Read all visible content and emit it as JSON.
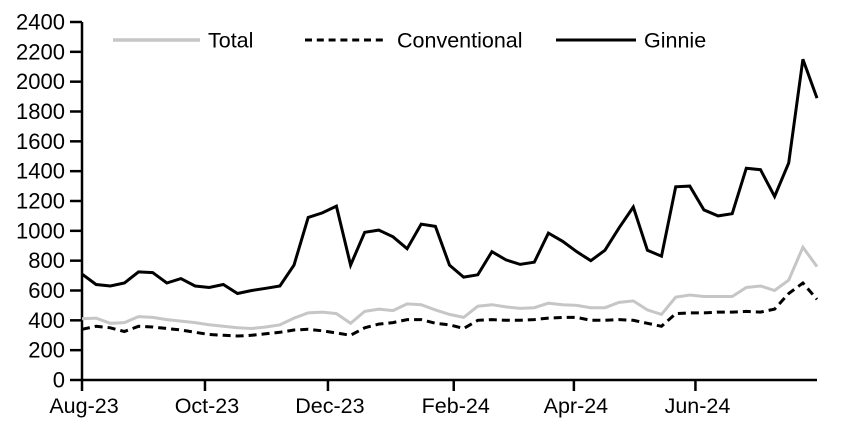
{
  "chart_data": {
    "type": "line",
    "title": "",
    "xlabel": "",
    "ylabel": "",
    "grid": false,
    "legend_position": "top-inside",
    "x_axis": {
      "n_points": 53,
      "unit": "weekly",
      "tick_labels": [
        "Aug-23",
        "Oct-23",
        "Dec-23",
        "Feb-24",
        "Apr-24",
        "Jun-24"
      ],
      "tick_point_index": [
        0,
        8.7,
        17.4,
        26.3,
        34.8,
        43.4
      ]
    },
    "y_axis": {
      "ylim": [
        0,
        2400
      ],
      "tick_step": 200,
      "tick_labels": [
        "0",
        "200",
        "400",
        "600",
        "800",
        "1000",
        "1200",
        "1400",
        "1600",
        "1800",
        "2000",
        "2200",
        "2400"
      ]
    },
    "series": [
      {
        "name": "Total",
        "color": "#c6c6c6",
        "style": "solid",
        "values": [
          410,
          415,
          380,
          385,
          425,
          420,
          405,
          395,
          385,
          370,
          360,
          350,
          345,
          355,
          370,
          415,
          450,
          455,
          445,
          380,
          460,
          475,
          465,
          510,
          505,
          470,
          440,
          420,
          495,
          505,
          490,
          480,
          485,
          515,
          505,
          500,
          485,
          485,
          520,
          530,
          470,
          440,
          555,
          570,
          560,
          560,
          560,
          620,
          630,
          600,
          670,
          890,
          760
        ]
      },
      {
        "name": "Conventional",
        "color": "#000000",
        "style": "dashed",
        "values": [
          340,
          360,
          350,
          325,
          360,
          355,
          345,
          335,
          320,
          305,
          300,
          295,
          300,
          310,
          320,
          335,
          340,
          330,
          315,
          300,
          350,
          375,
          385,
          405,
          405,
          380,
          370,
          345,
          400,
          405,
          400,
          400,
          405,
          415,
          420,
          420,
          400,
          400,
          405,
          400,
          380,
          360,
          445,
          450,
          450,
          455,
          455,
          460,
          455,
          475,
          580,
          650,
          540
        ]
      },
      {
        "name": "Ginnie",
        "color": "#000000",
        "style": "solid",
        "values": [
          710,
          640,
          630,
          650,
          725,
          720,
          650,
          680,
          630,
          620,
          640,
          580,
          600,
          615,
          630,
          770,
          1090,
          1120,
          1165,
          770,
          990,
          1005,
          960,
          880,
          1045,
          1030,
          770,
          690,
          705,
          860,
          805,
          775,
          790,
          985,
          930,
          860,
          800,
          870,
          1020,
          1160,
          870,
          830,
          1295,
          1300,
          1140,
          1100,
          1115,
          1420,
          1410,
          1230,
          1455,
          2150,
          1890
        ]
      }
    ]
  }
}
